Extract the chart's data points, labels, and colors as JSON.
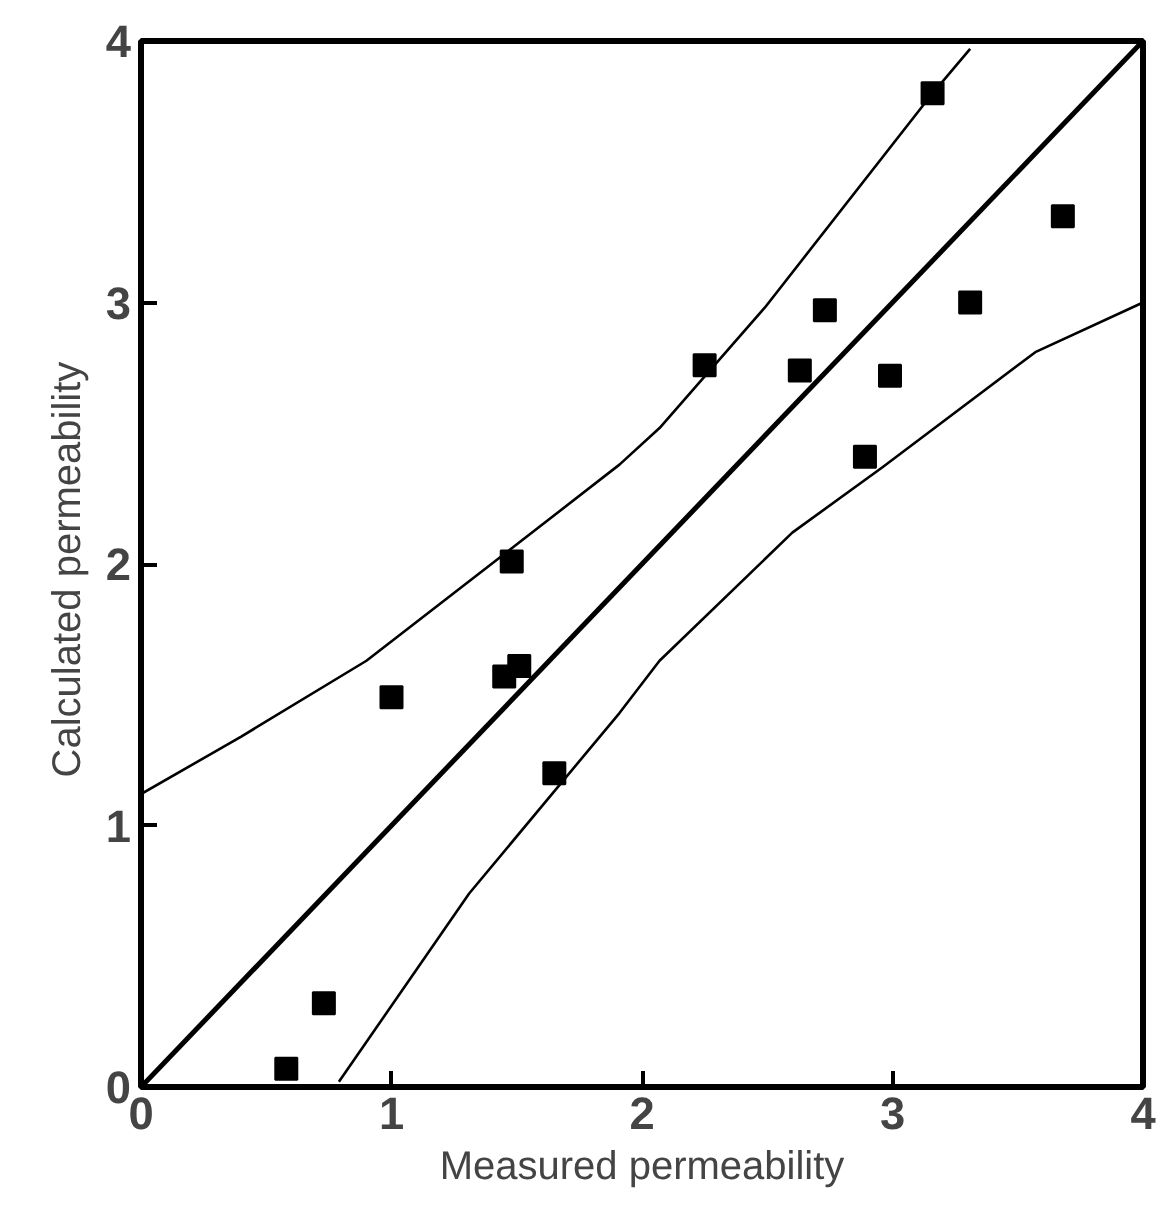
{
  "chart_data": {
    "type": "scatter",
    "xlabel": "Measured permeability",
    "ylabel": "Calculated  permeability",
    "xlim": [
      0,
      4
    ],
    "ylim": [
      0,
      4
    ],
    "xticks": [
      0,
      1,
      2,
      3,
      4
    ],
    "yticks": [
      0,
      1,
      2,
      3,
      4
    ],
    "grid": false,
    "series": [
      {
        "marker": "square",
        "color": "#000000",
        "x": [
          0.58,
          0.73,
          1.0,
          1.48,
          1.45,
          1.51,
          1.65,
          2.25,
          3.16,
          2.73,
          2.63,
          2.99,
          2.89,
          3.31,
          3.68
        ],
        "values": [
          0.07,
          0.32,
          1.49,
          2.01,
          1.57,
          1.61,
          1.2,
          2.76,
          3.8,
          2.97,
          2.74,
          2.72,
          2.41,
          3.0,
          3.33
        ]
      },
      {
        "type": "line",
        "marker": "none",
        "color": "#000000",
        "x": [
          0,
          4
        ],
        "values": [
          0,
          4
        ]
      },
      {
        "type": "line",
        "marker": "none",
        "color": "#000000",
        "x": [
          0,
          0.4,
          0.9,
          1.48,
          1.91,
          2.07,
          2.49,
          3.16,
          3.31
        ],
        "values": [
          1.12,
          1.34,
          1.63,
          2.06,
          2.38,
          2.52,
          2.98,
          3.8,
          3.97
        ]
      },
      {
        "type": "line",
        "marker": "none",
        "color": "#000000",
        "x": [
          0.79,
          1.31,
          1.91,
          2.07,
          2.6,
          2.96,
          3.57,
          4.0
        ],
        "values": [
          0.02,
          0.74,
          1.43,
          1.63,
          2.12,
          2.37,
          2.81,
          3.0
        ]
      }
    ]
  }
}
